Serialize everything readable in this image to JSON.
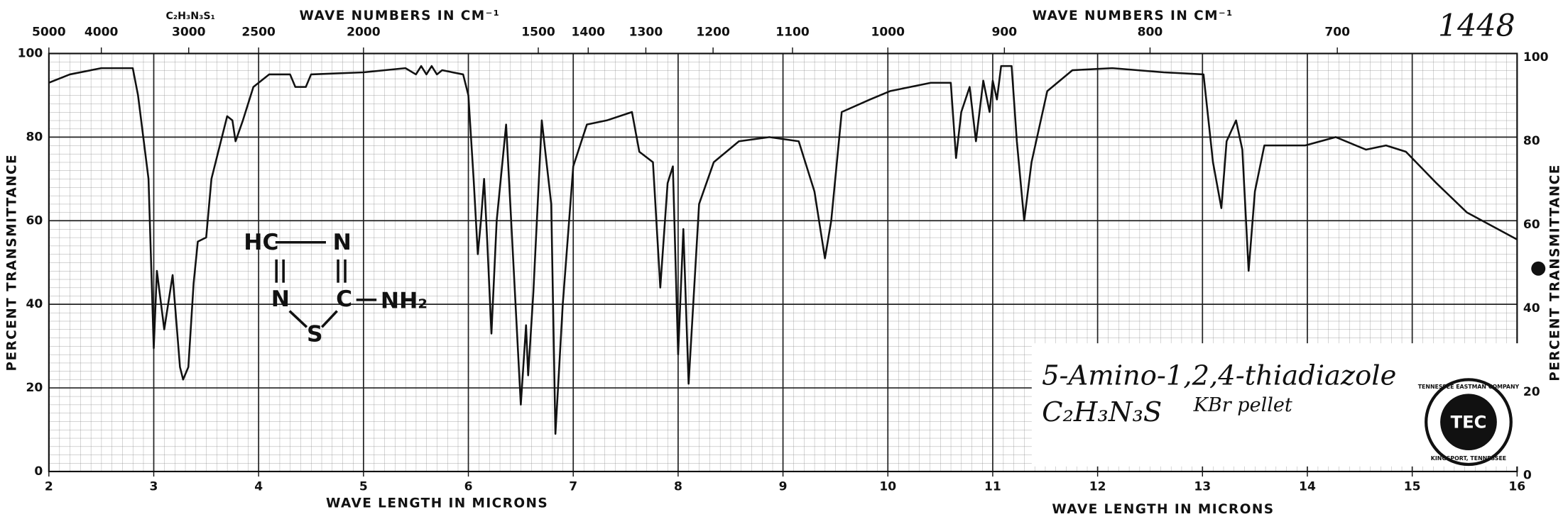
{
  "chart_data": {
    "type": "line",
    "catalog_number": "1448",
    "header_formula": "C₂H₃N₃S₁",
    "top_axis_label": "WAVE NUMBERS IN CM⁻¹",
    "top_ticks": [
      5000,
      4000,
      3000,
      2500,
      2000,
      1500,
      1400,
      1300,
      1200,
      1100,
      1000,
      900,
      800,
      700
    ],
    "xlabel": "WAVE LENGTH IN MICRONS",
    "ylabel": "PERCENT TRANSMITTANCE",
    "xlim": [
      2,
      16
    ],
    "xticks": [
      2,
      3,
      4,
      5,
      6,
      7,
      8,
      9,
      10,
      11,
      12,
      13,
      14,
      15,
      16
    ],
    "ylim": [
      0,
      100
    ],
    "yticks": [
      0,
      20,
      40,
      60,
      80,
      100
    ],
    "grid": true,
    "color": "#111111",
    "x": [
      2.0,
      2.2,
      2.5,
      2.8,
      2.85,
      2.95,
      3.0,
      3.03,
      3.1,
      3.18,
      3.25,
      3.28,
      3.33,
      3.38,
      3.42,
      3.5,
      3.55,
      3.7,
      3.75,
      3.78,
      3.85,
      3.95,
      4.1,
      4.3,
      4.35,
      4.45,
      4.5,
      5.0,
      5.4,
      5.5,
      5.55,
      5.6,
      5.65,
      5.7,
      5.75,
      5.95,
      6.0,
      6.05,
      6.09,
      6.12,
      6.15,
      6.18,
      6.22,
      6.27,
      6.36,
      6.5,
      6.55,
      6.57,
      6.62,
      6.7,
      6.79,
      6.83,
      6.9,
      7.0,
      7.13,
      7.32,
      7.56,
      7.63,
      7.76,
      7.83,
      7.9,
      7.95,
      8.0,
      8.05,
      8.1,
      8.2,
      8.34,
      8.58,
      8.87,
      9.15,
      9.3,
      9.4,
      9.46,
      9.56,
      9.83,
      10.02,
      10.41,
      10.6,
      10.65,
      10.7,
      10.78,
      10.84,
      10.91,
      10.97,
      11.0,
      11.04,
      11.08,
      11.18,
      11.23,
      11.3,
      11.37,
      11.52,
      11.76,
      12.14,
      12.63,
      13.01,
      13.1,
      13.18,
      13.23,
      13.32,
      13.38,
      13.44,
      13.5,
      13.59,
      13.98,
      14.27,
      14.56,
      14.75,
      14.94,
      15.23,
      15.52,
      16.0
    ],
    "values": [
      93,
      95,
      96.5,
      96.5,
      90,
      70,
      29.5,
      48,
      34,
      47,
      25,
      22,
      25,
      45,
      55,
      56,
      70,
      85,
      84,
      79,
      84,
      92,
      95,
      95,
      92,
      92,
      95,
      95.5,
      96.5,
      95,
      97,
      95,
      97,
      95,
      96,
      95,
      90,
      70,
      52,
      60,
      70,
      55,
      33,
      60,
      83,
      16,
      35,
      23,
      43,
      84,
      64,
      9,
      40,
      73,
      83,
      84,
      86,
      76.5,
      74,
      44,
      69,
      73,
      28,
      58,
      21,
      64,
      74,
      79,
      80,
      79,
      67,
      51,
      60,
      86,
      89,
      91,
      93,
      93,
      75,
      86,
      92,
      79,
      93.5,
      86,
      93.5,
      89,
      97,
      97,
      79,
      60,
      74,
      91,
      96,
      96.5,
      95.5,
      95,
      74,
      63,
      79,
      84,
      77,
      48,
      67,
      78,
      78,
      80,
      77,
      78,
      76.5,
      69,
      62,
      55.5
    ],
    "annotations": {
      "compound": "5-Amino-1,2,4-thiadiazole",
      "formula": "C₂H₃N₃S",
      "sample": "KBr pellet"
    },
    "structure": [
      "HC",
      "N",
      "N",
      "C",
      "NH₂",
      "S"
    ],
    "logo": {
      "mark": "TEC",
      "ring_top": "TENNESSEE EASTMAN COMPANY",
      "ring_bottom": "KINGSPORT, TENNESSEE"
    }
  }
}
